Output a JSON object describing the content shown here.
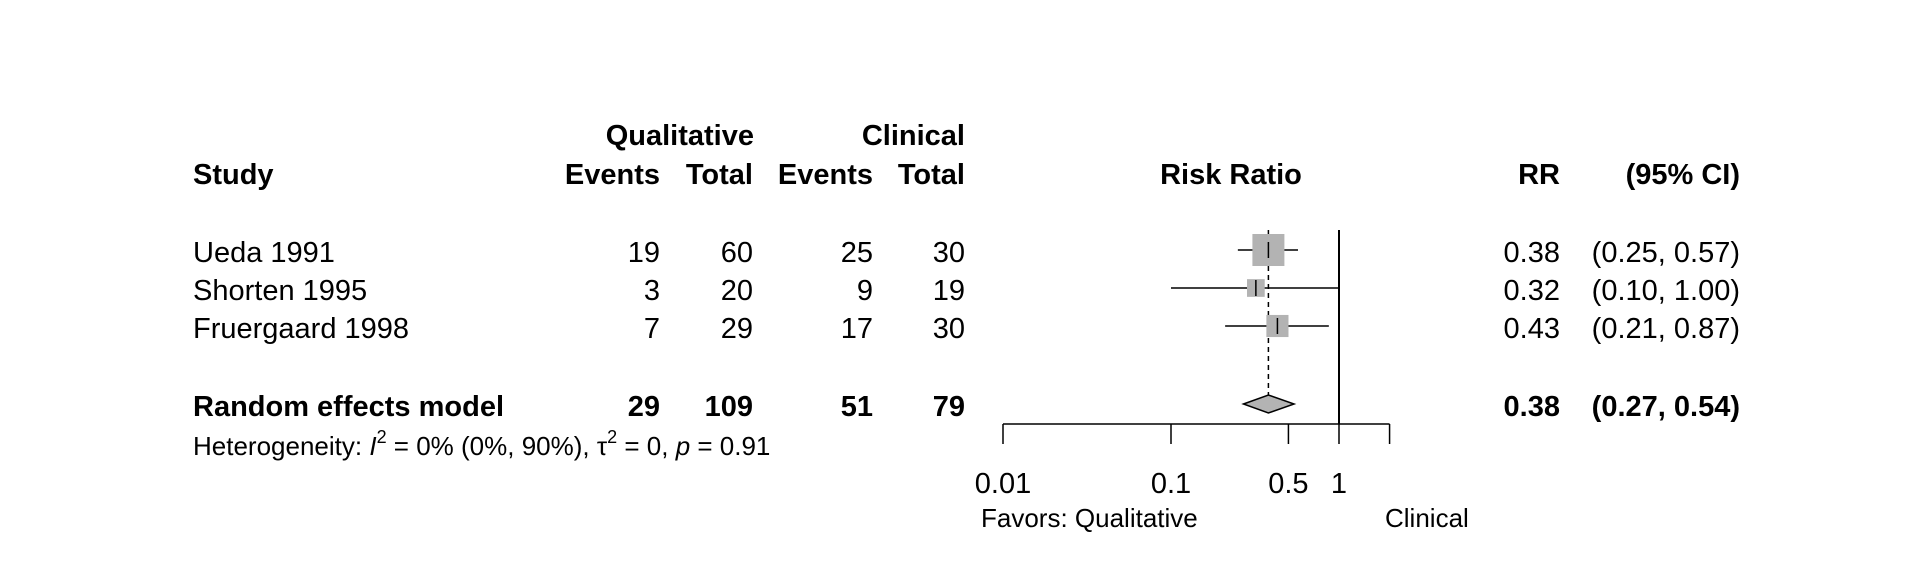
{
  "chart_data": {
    "type": "forest",
    "title": "Risk Ratio",
    "headers": {
      "study": "Study",
      "group1": "Qualitative",
      "group2": "Clinical",
      "events": "Events",
      "total": "Total",
      "effect": "Risk Ratio",
      "rr": "RR",
      "ci": "(95% CI)"
    },
    "studies": [
      {
        "name": "Ueda 1991",
        "e1": "19",
        "n1": "60",
        "e2": "25",
        "n2": "30",
        "rr": 0.38,
        "lo": 0.25,
        "hi": 0.57,
        "weight": 1.0,
        "rr_label": "0.38",
        "ci_label": "(0.25, 0.57)"
      },
      {
        "name": "Shorten 1995",
        "e1": "3",
        "n1": "20",
        "e2": "9",
        "n2": "19",
        "rr": 0.32,
        "lo": 0.1,
        "hi": 1.0,
        "weight": 0.35,
        "rr_label": "0.32",
        "ci_label": "(0.10, 1.00)"
      },
      {
        "name": "Fruergaard 1998",
        "e1": "7",
        "n1": "29",
        "e2": "17",
        "n2": "30",
        "rr": 0.43,
        "lo": 0.21,
        "hi": 0.87,
        "weight": 0.55,
        "rr_label": "0.43",
        "ci_label": "(0.21, 0.87)"
      }
    ],
    "pooled": {
      "name": "Random effects model",
      "e1": "29",
      "n1": "109",
      "e2": "51",
      "n2": "79",
      "rr": 0.38,
      "lo": 0.27,
      "hi": 0.54,
      "rr_label": "0.38",
      "ci_label": "(0.27, 0.54)"
    },
    "heterogeneity": {
      "prefix": "Heterogeneity: ",
      "i2_symbol": "I",
      "sup2": "2",
      "i2_text": " = 0% (0%, 90%), ",
      "tau_symbol": "τ",
      "tau_text": " = 0, ",
      "p_symbol": "p",
      "p_text": " = 0.91"
    },
    "x_axis": {
      "scale": "log",
      "range": [
        0.01,
        2
      ],
      "ticks": [
        0.01,
        0.1,
        0.5,
        1
      ],
      "tick_labels": [
        "0.01",
        "0.1",
        "0.5",
        "1"
      ],
      "null_value": 1
    },
    "favors": {
      "left": "Favors: Qualitative",
      "right": "Clinical"
    }
  }
}
